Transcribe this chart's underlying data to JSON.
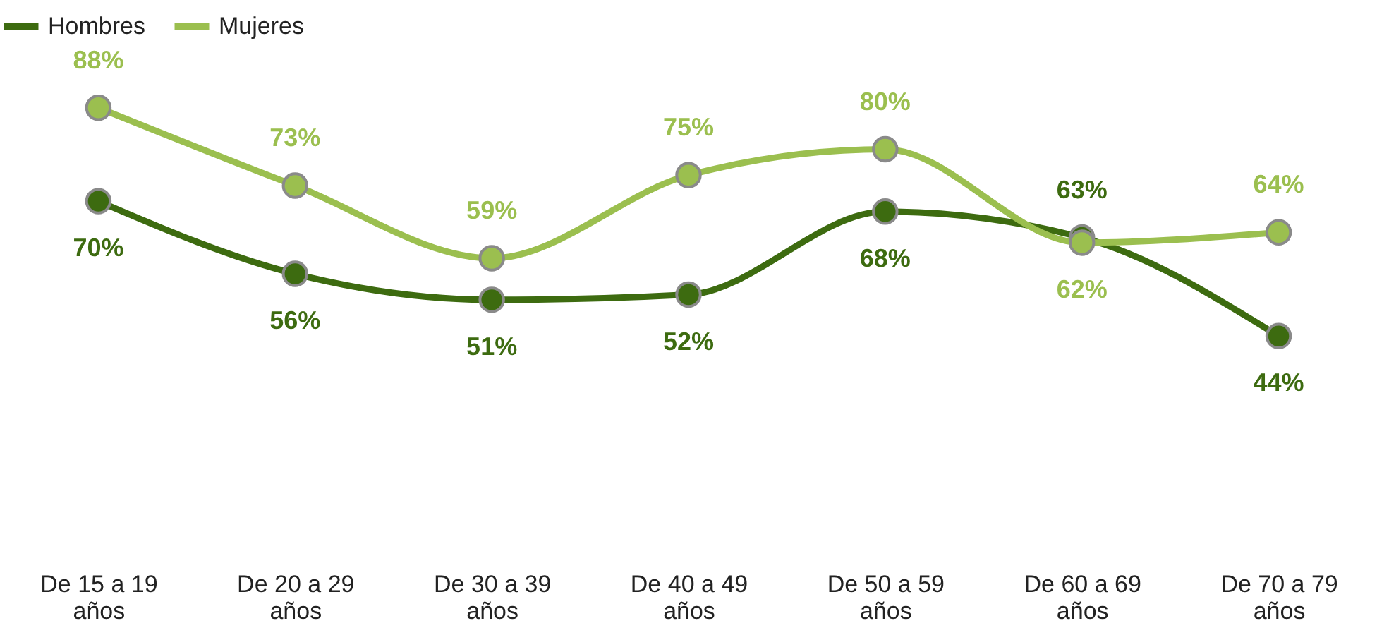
{
  "chart_data": {
    "type": "line",
    "categories": [
      "De 15 a 19 años",
      "De 20 a 29 años",
      "De 30 a 39 años",
      "De 40 a 49 años",
      "De 50 a 59 años",
      "De 60 a 69 años",
      "De 70 a 79 años"
    ],
    "series": [
      {
        "name": "Hombres",
        "color": "#3d6b10",
        "values": [
          70,
          56,
          51,
          52,
          68,
          63,
          44
        ],
        "value_labels": [
          "70%",
          "56%",
          "51%",
          "52%",
          "68%",
          "63%",
          "44%"
        ]
      },
      {
        "name": "Mujeres",
        "color": "#9bbf4f",
        "values": [
          88,
          73,
          59,
          75,
          80,
          62,
          64
        ],
        "value_labels": [
          "88%",
          "73%",
          "59%",
          "75%",
          "80%",
          "62%",
          "64%"
        ]
      }
    ],
    "legend": "top",
    "marker": "circle",
    "line_style": "solid",
    "tick_labels": "x"
  }
}
